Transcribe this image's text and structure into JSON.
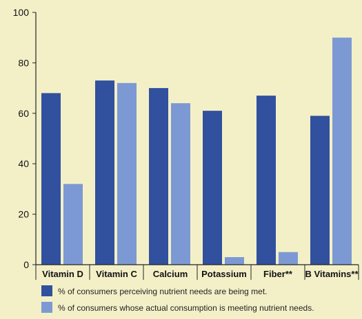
{
  "chart_data": {
    "type": "bar",
    "title": "",
    "xlabel": "",
    "ylabel": "",
    "ylim": [
      0,
      100
    ],
    "yticks": [
      "0",
      "20",
      "40",
      "60",
      "80",
      "100"
    ],
    "grid": false,
    "legend_position": "bottom",
    "categories": [
      "Vitamin  D",
      "Vitamin  C",
      "Calcium",
      "Potassium",
      "Fiber**",
      "B Vitamins**"
    ],
    "series": [
      {
        "name": "% of consumers perceiving nutrient needs are being met.",
        "color": "#31509e",
        "values": [
          68,
          73,
          70,
          61,
          67,
          59
        ]
      },
      {
        "name": "% of consumers whose actual consumption is meeting nutrient needs.",
        "color": "#7d99d3",
        "values": [
          32,
          72,
          64,
          3,
          5,
          90
        ]
      }
    ]
  }
}
